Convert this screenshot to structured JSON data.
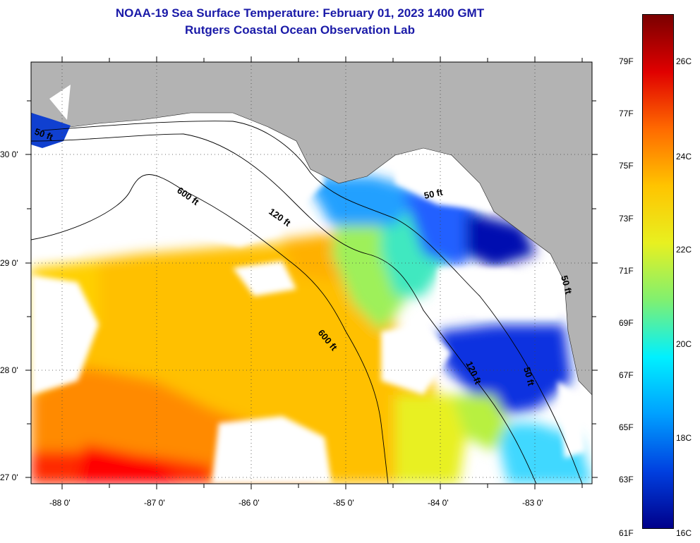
{
  "title": {
    "line1": "NOAA-19 Sea Surface Temperature:  February 01, 2023 1400 GMT",
    "line2": "Rutgers Coastal Ocean Observation Lab"
  },
  "map": {
    "lat_labels": [
      "30 0'",
      "29 0'",
      "28 0'",
      "27 0'"
    ],
    "lon_labels": [
      "-88 0'",
      "-87 0'",
      "-86 0'",
      "-85 0'",
      "-84 0'",
      "-83 0'"
    ],
    "contour_labels": [
      "600 ft",
      "120 ft",
      "50 ft",
      "600 ft",
      "120 ft",
      "50 ft",
      "50 ft",
      "50 ft"
    ],
    "colors": {
      "land": "#b3b3b3",
      "cloud": "#ffffff",
      "contour": "#000000"
    }
  },
  "colorbar": {
    "f_labels": [
      "79F",
      "77F",
      "75F",
      "73F",
      "71F",
      "69F",
      "67F",
      "65F",
      "63F",
      "61F"
    ],
    "c_labels": [
      "26C",
      "24C",
      "22C",
      "20C",
      "18C",
      "16C"
    ],
    "range_f": [
      61,
      81
    ],
    "stops": [
      "#7a0000",
      "#e00000",
      "#ff6a00",
      "#ffc400",
      "#e8f020",
      "#80f070",
      "#00f0ff",
      "#00a0ff",
      "#0040e0",
      "#00008a"
    ]
  }
}
